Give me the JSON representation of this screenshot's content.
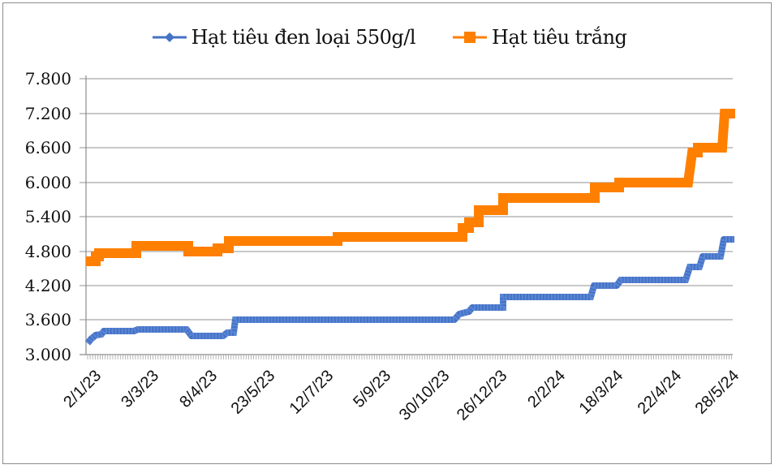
{
  "chart_data": {
    "type": "line",
    "title": "",
    "xlabel": "",
    "ylabel": "",
    "ylim": [
      3000,
      7800
    ],
    "yticks": [
      "3.000",
      "3.600",
      "4.200",
      "4.800",
      "5.400",
      "6.000",
      "6.600",
      "7.200",
      "7.800"
    ],
    "grid": true,
    "legend_position": "top",
    "x_tick_labels": [
      "2/1/23",
      "3/3/23",
      "8/4/23",
      "23/5/23",
      "12/7/23",
      "5/9/23",
      "30/10/23",
      "26/12/23",
      "2/2/24",
      "18/3/24",
      "22/4/24",
      "28/5/24"
    ],
    "series": [
      {
        "name": "Hạt tiêu đen loại 550g/l",
        "color": "#4472C4",
        "marker": "diamond",
        "points": [
          [
            "2/1/23",
            3200
          ],
          [
            "early Jan 23",
            3300
          ],
          [
            "mid Jan 23",
            3330
          ],
          [
            "3/3/23",
            3370
          ],
          [
            "late Mar 23",
            3370
          ],
          [
            "8/4/23",
            3270
          ],
          [
            "early May 23",
            3320
          ],
          [
            "23/5/23",
            3600
          ],
          [
            "12/7/23",
            3600
          ],
          [
            "5/9/23",
            3600
          ],
          [
            "30/10/23",
            3600
          ],
          [
            "early Nov 23",
            3700
          ],
          [
            "mid Nov 23",
            3800
          ],
          [
            "26/12/23",
            4000
          ],
          [
            "2/2/24",
            4000
          ],
          [
            "18/3/24",
            4200
          ],
          [
            "late Mar 24",
            4300
          ],
          [
            "22/4/24",
            4300
          ],
          [
            "early May 24",
            4500
          ],
          [
            "mid May 24",
            4700
          ],
          [
            "28/5/24",
            5000
          ]
        ]
      },
      {
        "name": "Hạt tiêu trắng",
        "color": "#FF7F00",
        "marker": "square",
        "points": [
          [
            "2/1/23",
            4600
          ],
          [
            "early Jan 23",
            4700
          ],
          [
            "mid Jan 23",
            4750
          ],
          [
            "3/3/23",
            4880
          ],
          [
            "late Mar 23",
            4880
          ],
          [
            "8/4/23",
            4780
          ],
          [
            "early May 23",
            4830
          ],
          [
            "23/5/23",
            5000
          ],
          [
            "12/7/23",
            5050
          ],
          [
            "5/9/23",
            5100
          ],
          [
            "30/10/23",
            5100
          ],
          [
            "early Nov 23",
            5200
          ],
          [
            "mid Nov 23",
            5500
          ],
          [
            "26/12/23",
            5700
          ],
          [
            "2/2/24",
            5700
          ],
          [
            "18/3/24",
            5900
          ],
          [
            "late Mar 24",
            6000
          ],
          [
            "22/4/24",
            6000
          ],
          [
            "early May 24",
            6500
          ],
          [
            "mid May 24",
            6600
          ],
          [
            "28/5/24",
            7200
          ]
        ]
      }
    ]
  },
  "legend": {
    "items": [
      {
        "label": "Hạt tiêu đen loại 550g/l",
        "color": "#4472C4"
      },
      {
        "label": "Hạt tiêu trắng",
        "color": "#FF7F00"
      }
    ]
  },
  "axis": {
    "y": [
      "7.800",
      "7.200",
      "6.600",
      "6.000",
      "5.400",
      "4.800",
      "4.200",
      "3.600",
      "3.000"
    ],
    "x": [
      "2/1/23",
      "3/3/23",
      "8/4/23",
      "23/5/23",
      "12/7/23",
      "5/9/23",
      "30/10/23",
      "26/12/23",
      "2/2/24",
      "18/3/24",
      "22/4/24",
      "28/5/24"
    ]
  }
}
